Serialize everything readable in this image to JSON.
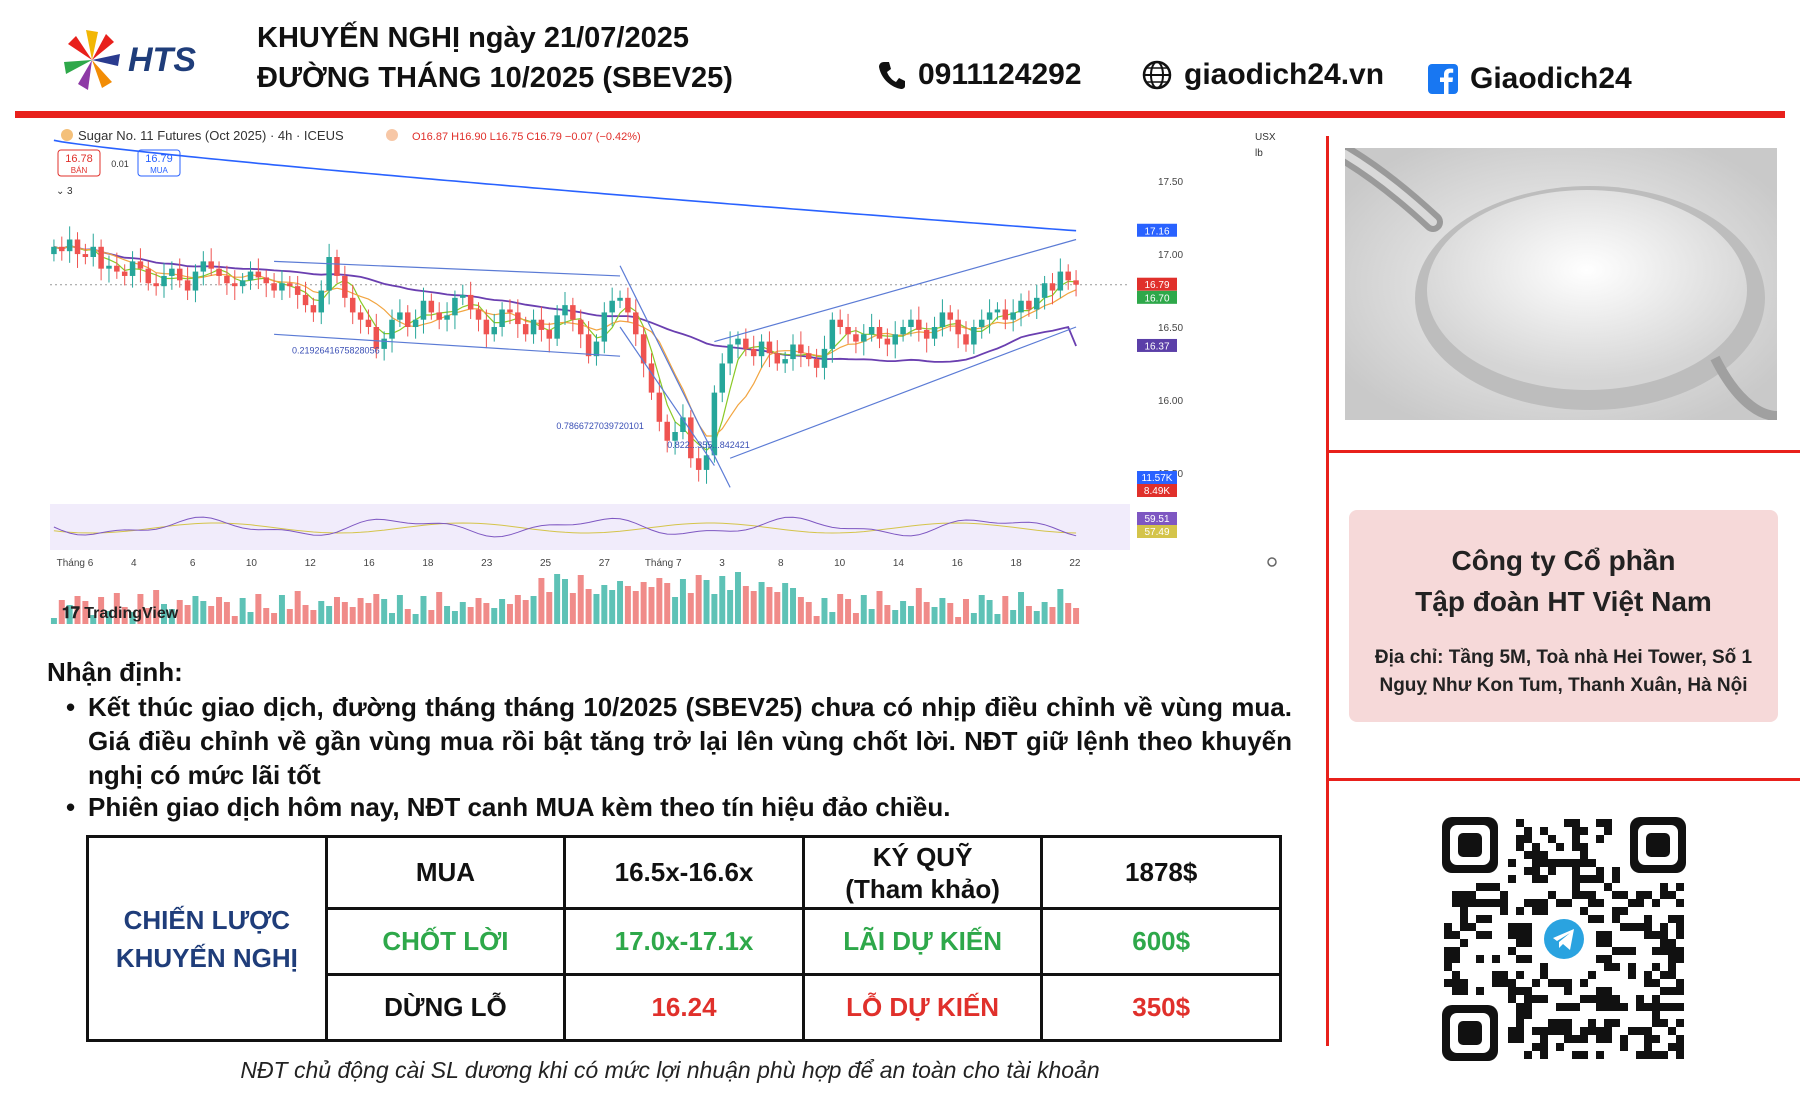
{
  "header": {
    "brand": "HTS",
    "title_line1": "KHUYẾN NGHỊ ngày 21/07/2025",
    "title_line2": "ĐƯỜNG THÁNG 10/2025 (SBEV25)",
    "phone": "0911124292",
    "website": "giaodich24.vn",
    "facebook": "Giaodich24",
    "icons": [
      "phone-icon",
      "globe-icon",
      "facebook-icon"
    ]
  },
  "chart": {
    "symbol_line": "Sugar No. 11 Futures (Oct 2025) · 4h · ICEUS",
    "ohlc": "O16.87 H16.90 L16.75 C16.79 −0.07 (−0.42%)",
    "sell_price": "16.78",
    "sell_label": "BÁN",
    "spread": "0.01",
    "buy_price": "16.79",
    "buy_label": "MUA",
    "indicator_count": "3",
    "currency": "USX",
    "unit": "lb",
    "watermark": "TradingView",
    "fib_labels": [
      "0.2192641675828056",
      "0.7866727039720101",
      "0.822...355...842421"
    ],
    "price_badges": [
      {
        "text": "17.16",
        "color": "#2962ff"
      },
      {
        "text": "16.79",
        "color": "#e0302b"
      },
      {
        "text": "16.70",
        "color": "#2ea84a"
      },
      {
        "text": "16.37",
        "color": "#5b3fa8"
      }
    ],
    "volume_badges": [
      {
        "text": "11.57K",
        "color": "#2962ff"
      },
      {
        "text": "8.49K",
        "color": "#e0302b"
      }
    ],
    "osc_badges": [
      {
        "text": "59.51",
        "color": "#7e57c2"
      },
      {
        "text": "57.49",
        "color": "#d4c44a"
      }
    ],
    "x_ticks": [
      "Tháng 6",
      "4",
      "6",
      "10",
      "12",
      "16",
      "18",
      "23",
      "25",
      "27",
      "Tháng 7",
      "3",
      "8",
      "10",
      "14",
      "16",
      "18",
      "22"
    ]
  },
  "chart_data": {
    "type": "candlestick",
    "title": "Sugar No. 11 Futures (Oct 2025) · 4h · ICEUS",
    "ylim": [
      15.3,
      17.7
    ],
    "y_ticks": [
      15.5,
      16.0,
      16.5,
      17.0,
      17.5
    ],
    "x_ticks": [
      "Tháng 6",
      "4",
      "6",
      "10",
      "12",
      "16",
      "18",
      "23",
      "25",
      "27",
      "Tháng 7",
      "3",
      "8",
      "10",
      "14",
      "16",
      "18",
      "22"
    ],
    "close": [
      17.05,
      17.02,
      17.1,
      17.0,
      16.98,
      17.05,
      16.9,
      16.92,
      16.88,
      16.85,
      16.95,
      16.9,
      16.8,
      16.78,
      16.85,
      16.9,
      16.82,
      16.75,
      16.88,
      16.95,
      16.9,
      16.85,
      16.8,
      16.78,
      16.82,
      16.88,
      16.84,
      16.8,
      16.75,
      16.8,
      16.78,
      16.72,
      16.65,
      16.6,
      16.75,
      16.98,
      16.85,
      16.7,
      16.6,
      16.55,
      16.5,
      16.35,
      16.42,
      16.55,
      16.6,
      16.5,
      16.55,
      16.68,
      16.6,
      16.55,
      16.58,
      16.7,
      16.72,
      16.62,
      16.55,
      16.45,
      16.5,
      16.62,
      16.6,
      16.52,
      16.45,
      16.55,
      16.48,
      16.42,
      16.58,
      16.65,
      16.55,
      16.45,
      16.3,
      16.4,
      16.6,
      16.68,
      16.7,
      16.6,
      16.45,
      16.25,
      16.05,
      15.85,
      15.72,
      15.78,
      15.88,
      15.6,
      15.52,
      15.62,
      16.05,
      16.25,
      16.38,
      16.42,
      16.35,
      16.3,
      16.4,
      16.32,
      16.25,
      16.28,
      16.38,
      16.32,
      16.28,
      16.22,
      16.35,
      16.55,
      16.5,
      16.45,
      16.4,
      16.45,
      16.5,
      16.42,
      16.38,
      16.45,
      16.5,
      16.55,
      16.48,
      16.42,
      16.5,
      16.6,
      16.55,
      16.45,
      16.38,
      16.5,
      16.55,
      16.6,
      16.62,
      16.55,
      16.6,
      16.68,
      16.62,
      16.7,
      16.8,
      16.75,
      16.88,
      16.82,
      16.79
    ],
    "ma_short": {
      "name": "",
      "last": 16.7
    },
    "ma_long": {
      "name": "",
      "last": 16.37
    },
    "ma_upper": {
      "name": "",
      "last": 17.16
    },
    "volume_last": [
      "11.57K",
      "8.49K"
    ],
    "oscillator_last": [
      59.51,
      57.49
    ]
  },
  "analysis": {
    "title": "Nhận định:",
    "bullet_symbol": "•",
    "bullets": [
      "Kết thúc giao dịch, đường tháng tháng 10/2025 (SBEV25) chưa có nhịp điều chỉnh về vùng mua. Giá điều chỉnh về gần vùng mua rồi bật tăng trở lại lên vùng chốt lời. NĐT giữ lệnh theo khuyến nghị  có mức lãi tốt",
      "Phiên giao dịch hôm nay, NĐT canh MUA kèm theo tín hiệu đảo chiều."
    ]
  },
  "strategy": {
    "label_line1": "CHIẾN LƯỢC",
    "label_line2": "KHUYẾN NGHỊ",
    "buy_label": "MUA",
    "buy_value": "16.5x-16.6x",
    "margin_label_line1": "KÝ QUỸ",
    "margin_label_line2": "(Tham khảo)",
    "margin_value": "1878$",
    "tp_label": "CHỐT LỜI",
    "tp_value": "17.0x-17.1x",
    "profit_label": "LÃI DỰ KIẾN",
    "profit_value": "600$",
    "sl_label": "DỪNG LỖ",
    "sl_value": "16.24",
    "loss_label": "LỖ DỰ KIẾN",
    "loss_value": "350$"
  },
  "company": {
    "name_line1": "Công ty Cổ phần",
    "name_line2": "Tập đoàn HT Việt Nam",
    "address_line1": "Địa chỉ: Tầng 5M, Toà nhà Hei Tower, Số 1",
    "address_line2": "Nguỵ Như Kon Tum, Thanh Xuân, Hà Nội"
  },
  "footnote": "NĐT chủ động cài SL dương khi có mức lợi nhuận phù hợp để an toàn cho tài khoản",
  "colors": {
    "brand_red": "#e8201b",
    "up": "#26a69a",
    "down": "#ef5350",
    "strategy_blue": "#1f3d7a",
    "green": "#2ea84a",
    "red": "#e0302b"
  }
}
